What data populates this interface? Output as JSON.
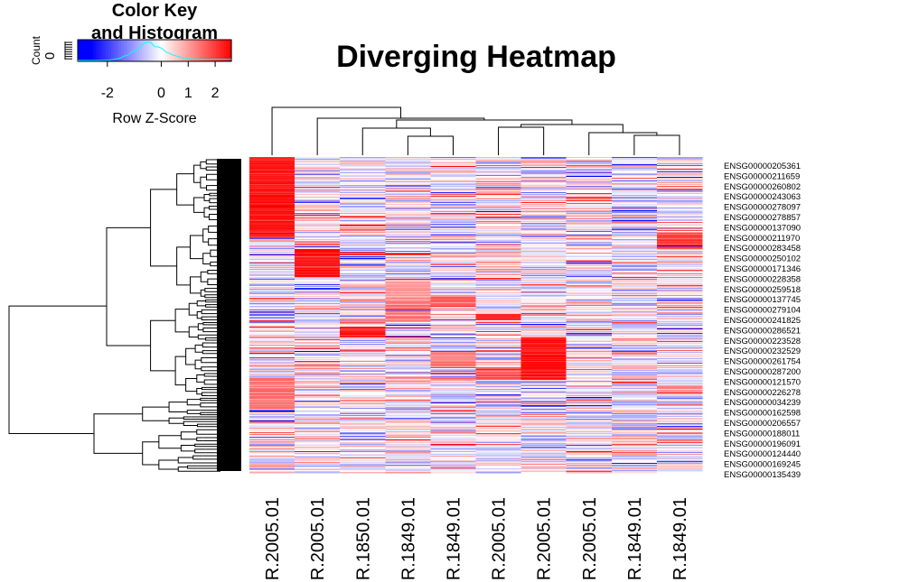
{
  "chart_data": {
    "type": "heatmap",
    "title": "Diverging Heatmap",
    "color_key": {
      "title": "Color Key and Histogram",
      "title_lines": [
        "Color Key",
        "and Histogram"
      ],
      "ylabel": "Count",
      "ytick": "0",
      "xlabel": "Row Z-Score",
      "xticks": [
        "-2",
        "0",
        "1",
        "2"
      ],
      "tick_values": [
        -2,
        0,
        1,
        2
      ],
      "range": [
        -3.1,
        2.6
      ],
      "colors": {
        "low": "#0000ff",
        "mid": "#ffffff",
        "high": "#ff0000"
      },
      "histogram_line_color": "#00ffff"
    },
    "columns": [
      "R.2005.01",
      "R.2005.01",
      "R.1850.01",
      "R.1849.01",
      "R.1849.01",
      "R.2005.01",
      "R.2005.01",
      "R.2005.01",
      "R.1849.01",
      "R.1849.01"
    ],
    "row_labels": [
      "ENSG00000205361",
      "ENSG00000211659",
      "ENSG00000260802",
      "ENSG00000243063",
      "ENSG00000278097",
      "ENSG00000278857",
      "ENSG00000137090",
      "ENSG00000211970",
      "ENSG00000283458",
      "ENSG00000250102",
      "ENSG00000171346",
      "ENSG00000228358",
      "ENSG00000259518",
      "ENSG00000137745",
      "ENSG00000279104",
      "ENSG00000241825",
      "ENSG00000286521",
      "ENSG00000223528",
      "ENSG00000232529",
      "ENSG00000261754",
      "ENSG00000287200",
      "ENSG00000121570",
      "ENSG00000226278",
      "ENSG00000034239",
      "ENSG00000162598",
      "ENSG00000206557",
      "ENSG00000188011",
      "ENSG00000196091",
      "ENSG00000124440",
      "ENSG00000169245",
      "ENSG00000135439"
    ],
    "row_count_approx": 350,
    "blocks": [
      {
        "rows": [
          0.0,
          0.26
        ],
        "col": 0,
        "value": 2.6
      },
      {
        "rows": [
          0.29,
          0.38
        ],
        "col": 1,
        "value": 2.6
      },
      {
        "rows": [
          0.535,
          0.57
        ],
        "col": 2,
        "value": 2.6
      },
      {
        "rows": [
          0.38,
          0.445
        ],
        "col": 3,
        "value": 1.2
      },
      {
        "rows": [
          0.445,
          0.52
        ],
        "col": 3,
        "value": 1.6
      },
      {
        "rows": [
          0.435,
          0.47
        ],
        "col": 4,
        "value": 1.8
      },
      {
        "rows": [
          0.62,
          0.66
        ],
        "col": 4,
        "value": 1.6
      },
      {
        "rows": [
          0.495,
          0.515
        ],
        "col": 5,
        "value": 2.4
      },
      {
        "rows": [
          0.665,
          0.705
        ],
        "col": 5,
        "value": 2.0
      },
      {
        "rows": [
          0.57,
          0.705
        ],
        "col": 6,
        "value": 2.6
      },
      {
        "rows": [
          0.24,
          0.29
        ],
        "col": 9,
        "value": 2.2
      },
      {
        "rows": [
          0.7,
          0.8
        ],
        "col": 0,
        "value": 1.6
      },
      {
        "rows": [
          0.725,
          0.745
        ],
        "col": 9,
        "value": 1.4
      }
    ]
  }
}
